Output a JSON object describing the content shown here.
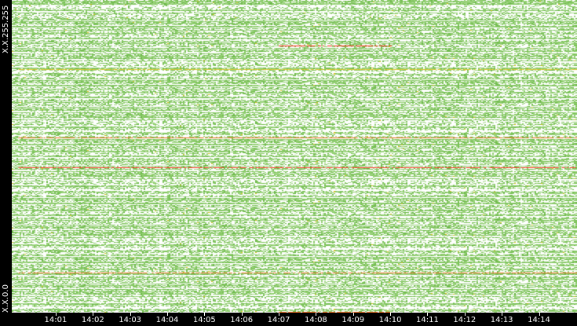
{
  "chart_data": {
    "type": "heatmap",
    "title": "",
    "xlabel": "",
    "ylabel": "",
    "x_ticks": [
      "14:01",
      "14:02",
      "14:03",
      "14:04",
      "14:05",
      "14:06",
      "14:07",
      "14:08",
      "14:09",
      "14:10",
      "14:11",
      "14:12",
      "14:13",
      "14:14"
    ],
    "y_labels": {
      "top": "X.X.255.255",
      "bottom": "X.X.0.0"
    },
    "x_range": [
      "14:00",
      "14:15"
    ],
    "colors": {
      "low": "#7dc35a",
      "medium": "#d8c020",
      "high": "#f06010",
      "peak": "#ff2010",
      "background": "#ffffff"
    },
    "highlight_rows": [
      {
        "address_fraction": 0.854,
        "from": "14:07",
        "to": "14:10",
        "level": "peak"
      },
      {
        "address_fraction": 0.778,
        "from": "14:00",
        "to": "14:15",
        "level": "medium"
      },
      {
        "address_fraction": 0.56,
        "from": "14:00",
        "to": "14:15",
        "level": "high"
      },
      {
        "address_fraction": 0.465,
        "from": "14:00",
        "to": "14:15",
        "level": "peak"
      },
      {
        "address_fraction": 0.128,
        "from": "14:00",
        "to": "14:15",
        "level": "high"
      },
      {
        "address_fraction": 0.003,
        "from": "14:07",
        "to": "14:10",
        "level": "high"
      }
    ]
  }
}
